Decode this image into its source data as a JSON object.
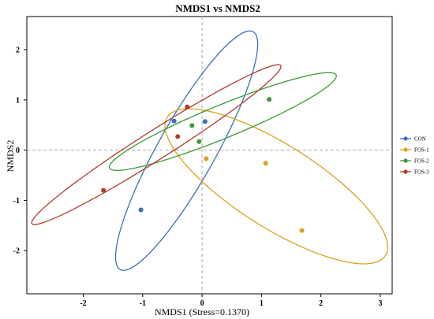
{
  "chart_data": {
    "type": "scatter",
    "title": "NMDS1 vs NMDS2",
    "xlabel": "NMDS1 (Stress=0.1370)",
    "ylabel": "NMDS2",
    "xlim": [
      -2.95,
      3.2
    ],
    "ylim": [
      -2.86,
      2.66
    ],
    "xticks": [
      -2,
      -1,
      0,
      1,
      2,
      3
    ],
    "yticks": [
      -2,
      -1,
      0,
      1,
      2
    ],
    "reference_lines": {
      "x": 0,
      "y": 0,
      "style": "dashed"
    },
    "grid": false,
    "legend_position": "right",
    "series": [
      {
        "name": "CON",
        "color": "#3a6fb8",
        "points": [
          [
            -1.03,
            -1.19
          ],
          [
            -0.47,
            0.58
          ],
          [
            0.05,
            0.57
          ]
        ],
        "ellipse": {
          "center": [
            -0.26,
            -0.01
          ],
          "semi_axes": [
            2.62,
            0.5
          ],
          "angle_deg": 65
        }
      },
      {
        "name": "FOS-1",
        "color": "#d9a21b",
        "points": [
          [
            0.07,
            -0.17
          ],
          [
            1.07,
            -0.26
          ],
          [
            1.68,
            -1.6
          ]
        ],
        "ellipse": {
          "center": [
            1.25,
            -0.72
          ],
          "semi_axes": [
            2.3,
            0.78
          ],
          "angle_deg": -38
        }
      },
      {
        "name": "FOS-2",
        "color": "#3a9a2e",
        "points": [
          [
            -0.17,
            0.49
          ],
          [
            -0.05,
            0.17
          ],
          [
            1.13,
            1.01
          ]
        ],
        "ellipse": {
          "center": [
            0.35,
            0.57
          ],
          "semi_axes": [
            2.12,
            0.32
          ],
          "angle_deg": 26
        }
      },
      {
        "name": "FOS-3",
        "color": "#b03a2e",
        "points": [
          [
            -0.25,
            0.86
          ],
          [
            -0.41,
            0.27
          ],
          [
            -1.66,
            -0.8
          ]
        ],
        "ellipse": {
          "center": [
            -0.77,
            0.11
          ],
          "semi_axes": [
            2.62,
            0.27
          ],
          "angle_deg": 37
        }
      }
    ]
  }
}
